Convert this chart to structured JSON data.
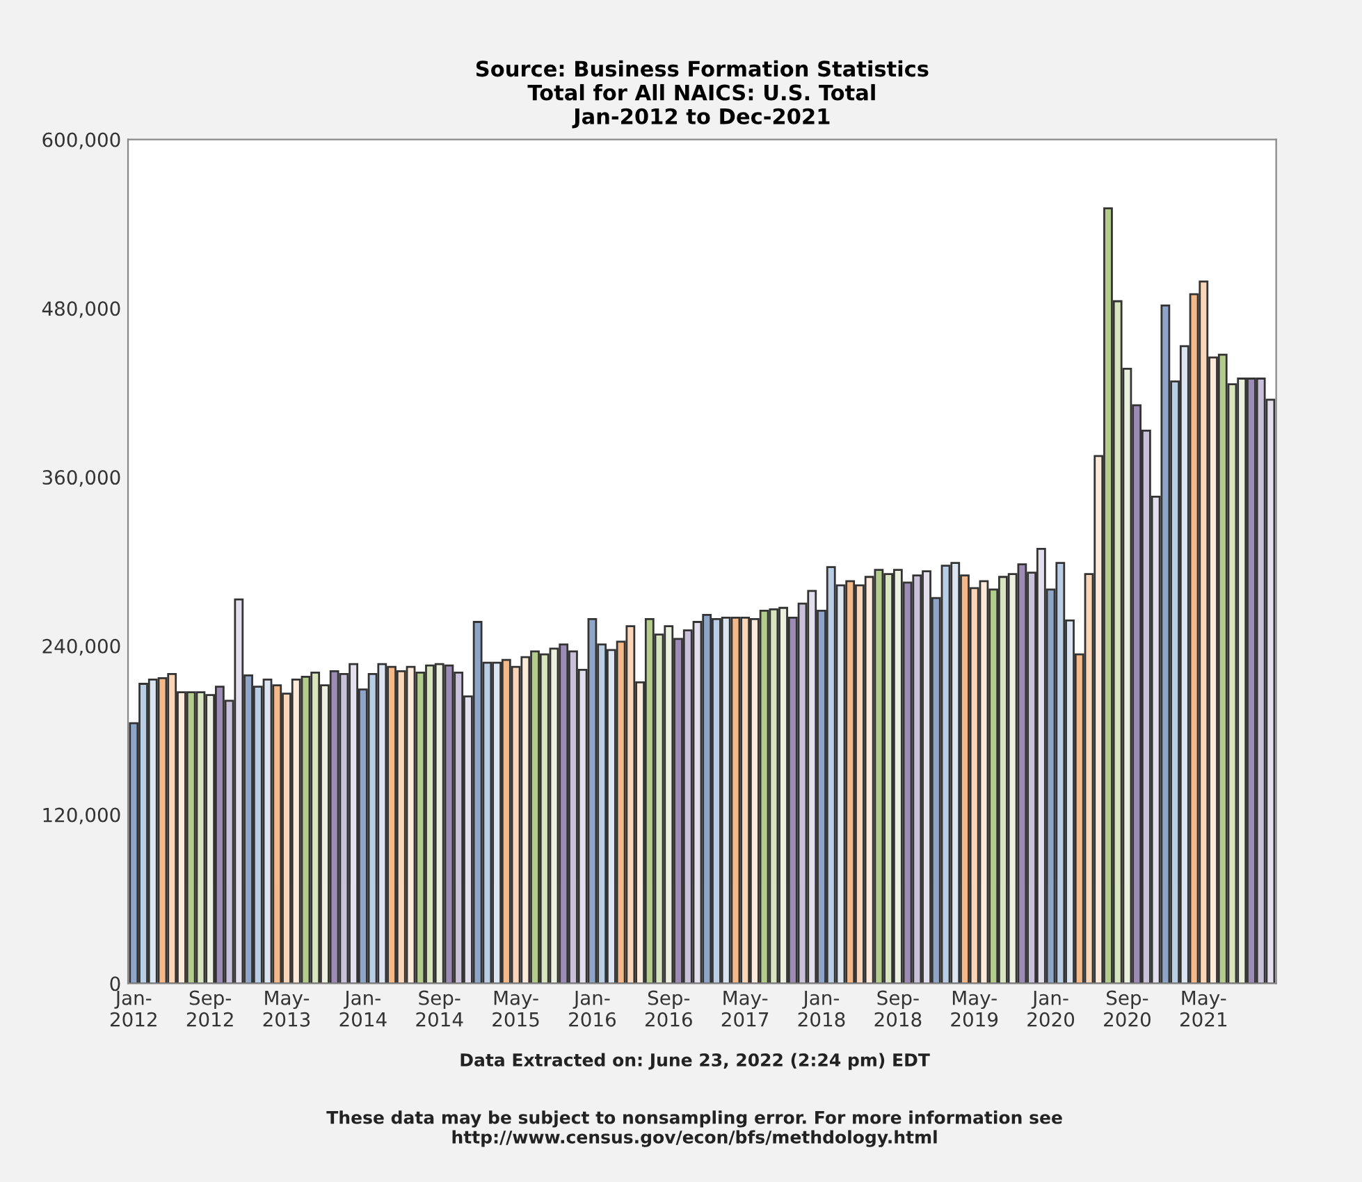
{
  "chart_data": {
    "type": "bar",
    "title": "Source: Business Formation Statistics\nTotal for All NAICS: U.S. Total\nJan-2012 to Dec-2021",
    "annotations": [
      "Data Extracted on: June 23, 2022 (2:24 pm) EDT",
      "These data may be subject to nonsampling error. For more information see\nhttp://www.census.gov/econ/bfs/methdology.html"
    ],
    "categories": [
      "Jan-2012",
      null,
      null,
      null,
      null,
      null,
      null,
      null,
      "Sep-2012",
      null,
      null,
      null,
      null,
      null,
      null,
      null,
      "May-2013",
      null,
      null,
      null,
      null,
      null,
      null,
      null,
      "Jan-2014",
      null,
      null,
      null,
      null,
      null,
      null,
      null,
      "Sep-2014",
      null,
      null,
      null,
      null,
      null,
      null,
      null,
      "May-2015",
      null,
      null,
      null,
      null,
      null,
      null,
      null,
      "Jan-2016",
      null,
      null,
      null,
      null,
      null,
      null,
      null,
      "Sep-2016",
      null,
      null,
      null,
      null,
      null,
      null,
      null,
      "May-2017",
      null,
      null,
      null,
      null,
      null,
      null,
      null,
      "Jan-2018",
      null,
      null,
      null,
      null,
      null,
      null,
      null,
      "Sep-2018",
      null,
      null,
      null,
      null,
      null,
      null,
      null,
      "May-2019",
      null,
      null,
      null,
      null,
      null,
      null,
      null,
      "Jan-2020",
      null,
      null,
      null,
      null,
      null,
      null,
      null,
      "Sep-2020",
      null,
      null,
      null,
      null,
      null,
      null,
      null,
      "May-2021",
      null,
      null,
      null,
      null,
      null,
      null,
      null
    ],
    "values": [
      185000,
      213000,
      216000,
      217000,
      220000,
      207000,
      207000,
      207000,
      205000,
      211000,
      201000,
      273000,
      219000,
      211000,
      216000,
      212000,
      206000,
      216000,
      218000,
      221000,
      212000,
      222000,
      220000,
      227000,
      209000,
      220000,
      227000,
      225000,
      222000,
      225000,
      221000,
      226000,
      227000,
      226000,
      221000,
      204000,
      257000,
      228000,
      228000,
      230000,
      225000,
      232000,
      236000,
      234000,
      238000,
      241000,
      236000,
      223000,
      259000,
      241000,
      237000,
      243000,
      254000,
      214000,
      259000,
      248000,
      254000,
      245000,
      251000,
      257000,
      262000,
      259000,
      260000,
      260000,
      260000,
      259000,
      265000,
      266000,
      267000,
      260000,
      270000,
      279000,
      265000,
      296000,
      283000,
      286000,
      283000,
      289000,
      294000,
      291000,
      294000,
      285000,
      290000,
      293000,
      274000,
      297000,
      299000,
      290000,
      281000,
      286000,
      280000,
      289000,
      291000,
      298000,
      292000,
      309000,
      280000,
      299000,
      258000,
      234000,
      291000,
      375000,
      551000,
      485000,
      437000,
      411000,
      393000,
      346000,
      482000,
      428000,
      453000,
      490000,
      499000,
      445000,
      447000,
      426000,
      430000,
      430000,
      430000,
      415000
    ],
    "colors": [
      "#8ea5c8",
      "#b9cde5",
      "#dce6f2",
      "#f5b889",
      "#fad5b8",
      "#fdeada",
      "#b3cc8c",
      "#d7e4bd",
      "#ebf1de",
      "#9b8bb5",
      "#c9c1d9",
      "#e4dfec",
      "#8ea5c8",
      "#b9cde5",
      "#dce6f2",
      "#f5b889",
      "#fad5b8",
      "#fdeada",
      "#b3cc8c",
      "#d7e4bd",
      "#ebf1de",
      "#9b8bb5",
      "#c9c1d9",
      "#e4dfec",
      "#8ea5c8",
      "#b9cde5",
      "#dce6f2",
      "#f5b889",
      "#fad5b8",
      "#fdeada",
      "#b3cc8c",
      "#d7e4bd",
      "#ebf1de",
      "#9b8bb5",
      "#c9c1d9",
      "#e4dfec",
      "#8ea5c8",
      "#b9cde5",
      "#dce6f2",
      "#f5b889",
      "#fad5b8",
      "#fdeada",
      "#b3cc8c",
      "#d7e4bd",
      "#ebf1de",
      "#9b8bb5",
      "#c9c1d9",
      "#e4dfec",
      "#8ea5c8",
      "#b9cde5",
      "#dce6f2",
      "#f5b889",
      "#fad5b8",
      "#fdeada",
      "#b3cc8c",
      "#d7e4bd",
      "#ebf1de",
      "#9b8bb5",
      "#c9c1d9",
      "#e4dfec",
      "#8ea5c8",
      "#b9cde5",
      "#dce6f2",
      "#f5b889",
      "#fad5b8",
      "#fdeada",
      "#b3cc8c",
      "#d7e4bd",
      "#ebf1de",
      "#9b8bb5",
      "#c9c1d9",
      "#e4dfec",
      "#8ea5c8",
      "#b9cde5",
      "#dce6f2",
      "#f5b889",
      "#fad5b8",
      "#fdeada",
      "#b3cc8c",
      "#d7e4bd",
      "#ebf1de",
      "#9b8bb5",
      "#c9c1d9",
      "#e4dfec",
      "#8ea5c8",
      "#b9cde5",
      "#dce6f2",
      "#f5b889",
      "#fad5b8",
      "#fdeada",
      "#b3cc8c",
      "#d7e4bd",
      "#ebf1de",
      "#9b8bb5",
      "#c9c1d9",
      "#e4dfec",
      "#8ea5c8",
      "#b9cde5",
      "#dce6f2",
      "#f5b889",
      "#fad5b8",
      "#fdeada",
      "#b3cc8c",
      "#d7e4bd",
      "#ebf1de",
      "#9b8bb5",
      "#c9c1d9",
      "#e4dfec",
      "#8ea5c8",
      "#b9cde5",
      "#dce6f2",
      "#f5b889",
      "#fad5b8",
      "#fdeada",
      "#b3cc8c",
      "#d7e4bd",
      "#ebf1de",
      "#9b8bb5",
      "#c9c1d9",
      "#e4dfec"
    ],
    "ylim": [
      0,
      600000
    ],
    "yticks": [
      {
        "value": 0,
        "label": "0"
      },
      {
        "value": 120000,
        "label": "120,000"
      },
      {
        "value": 240000,
        "label": "240,000"
      },
      {
        "value": 360000,
        "label": "360,000"
      },
      {
        "value": 480000,
        "label": "480,000"
      },
      {
        "value": 600000,
        "label": "600,000"
      }
    ],
    "grid": false,
    "legend": false
  }
}
